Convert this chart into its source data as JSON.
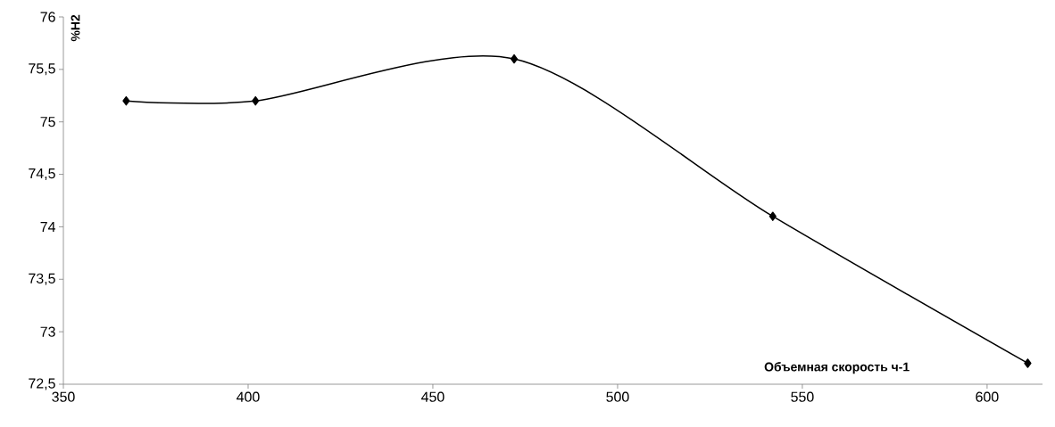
{
  "chart_data": {
    "type": "line",
    "xlabel": "Объемная скорость ч-1",
    "ylabel": "%H2",
    "x": [
      367,
      402,
      472,
      542,
      611
    ],
    "series": [
      {
        "color": "#000000",
        "values": [
          75.2,
          75.2,
          75.6,
          74.1,
          72.7
        ]
      }
    ],
    "marker": "diamond",
    "line_style": "solid",
    "grid": false,
    "xlim": [
      350,
      615
    ],
    "ylim": [
      72.5,
      76
    ],
    "xticks": [
      350,
      400,
      450,
      500,
      550,
      600
    ],
    "yticks": [
      {
        "value": 72.5,
        "label": "72,5"
      },
      73,
      {
        "value": 73.5,
        "label": "73,5"
      },
      74,
      {
        "value": 74.5,
        "label": "74,5"
      },
      75,
      {
        "value": 75.5,
        "label": "75,5"
      },
      76
    ]
  }
}
